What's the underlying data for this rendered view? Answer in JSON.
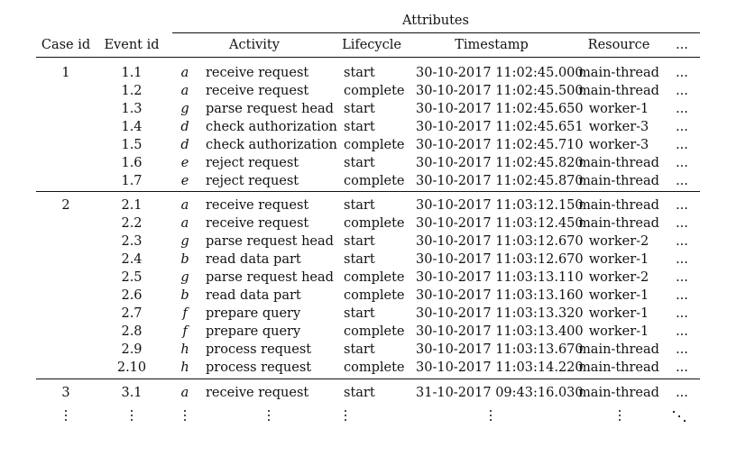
{
  "headers": {
    "attributes": "Attributes",
    "case_id": "Case id",
    "event_id": "Event id",
    "activity": "Activity",
    "lifecycle": "Lifecycle",
    "timestamp": "Timestamp",
    "resource": "Resource",
    "more": "..."
  },
  "cases": [
    {
      "case_id": "1",
      "events": [
        {
          "event_id": "1.1",
          "code": "a",
          "activity": "receive request",
          "lifecycle": "start",
          "timestamp": "30-10-2017 11:02:45.000",
          "resource": "main-thread",
          "more": "..."
        },
        {
          "event_id": "1.2",
          "code": "a",
          "activity": "receive request",
          "lifecycle": "complete",
          "timestamp": "30-10-2017 11:02:45.500",
          "resource": "main-thread",
          "more": "..."
        },
        {
          "event_id": "1.3",
          "code": "g",
          "activity": "parse request head",
          "lifecycle": "start",
          "timestamp": "30-10-2017 11:02:45.650",
          "resource": "worker-1",
          "more": "..."
        },
        {
          "event_id": "1.4",
          "code": "d",
          "activity": "check authorization",
          "lifecycle": "start",
          "timestamp": "30-10-2017 11:02:45.651",
          "resource": "worker-3",
          "more": "..."
        },
        {
          "event_id": "1.5",
          "code": "d",
          "activity": "check authorization",
          "lifecycle": "complete",
          "timestamp": "30-10-2017 11:02:45.710",
          "resource": "worker-3",
          "more": "..."
        },
        {
          "event_id": "1.6",
          "code": "e",
          "activity": "reject request",
          "lifecycle": "start",
          "timestamp": "30-10-2017 11:02:45.820",
          "resource": "main-thread",
          "more": "..."
        },
        {
          "event_id": "1.7",
          "code": "e",
          "activity": "reject request",
          "lifecycle": "complete",
          "timestamp": "30-10-2017 11:02:45.870",
          "resource": "main-thread",
          "more": "..."
        }
      ]
    },
    {
      "case_id": "2",
      "events": [
        {
          "event_id": "2.1",
          "code": "a",
          "activity": "receive request",
          "lifecycle": "start",
          "timestamp": "30-10-2017 11:03:12.150",
          "resource": "main-thread",
          "more": "..."
        },
        {
          "event_id": "2.2",
          "code": "a",
          "activity": "receive request",
          "lifecycle": "complete",
          "timestamp": "30-10-2017 11:03:12.450",
          "resource": "main-thread",
          "more": "..."
        },
        {
          "event_id": "2.3",
          "code": "g",
          "activity": "parse request head",
          "lifecycle": "start",
          "timestamp": "30-10-2017 11:03:12.670",
          "resource": "worker-2",
          "more": "..."
        },
        {
          "event_id": "2.4",
          "code": "b",
          "activity": "read data part",
          "lifecycle": "start",
          "timestamp": "30-10-2017 11:03:12.670",
          "resource": "worker-1",
          "more": "..."
        },
        {
          "event_id": "2.5",
          "code": "g",
          "activity": "parse request head",
          "lifecycle": "complete",
          "timestamp": "30-10-2017 11:03:13.110",
          "resource": "worker-2",
          "more": "..."
        },
        {
          "event_id": "2.6",
          "code": "b",
          "activity": "read data part",
          "lifecycle": "complete",
          "timestamp": "30-10-2017 11:03:13.160",
          "resource": "worker-1",
          "more": "..."
        },
        {
          "event_id": "2.7",
          "code": "f",
          "activity": "prepare query",
          "lifecycle": "start",
          "timestamp": "30-10-2017 11:03:13.320",
          "resource": "worker-1",
          "more": "..."
        },
        {
          "event_id": "2.8",
          "code": "f",
          "activity": "prepare query",
          "lifecycle": "complete",
          "timestamp": "30-10-2017 11:03:13.400",
          "resource": "worker-1",
          "more": "..."
        },
        {
          "event_id": "2.9",
          "code": "h",
          "activity": "process request",
          "lifecycle": "start",
          "timestamp": "30-10-2017 11:03:13.670",
          "resource": "main-thread",
          "more": "..."
        },
        {
          "event_id": "2.10",
          "code": "h",
          "activity": "process request",
          "lifecycle": "complete",
          "timestamp": "30-10-2017 11:03:14.220",
          "resource": "main-thread",
          "more": "..."
        }
      ]
    },
    {
      "case_id": "3",
      "events": [
        {
          "event_id": "3.1",
          "code": "a",
          "activity": "receive request",
          "lifecycle": "start",
          "timestamp": "31-10-2017 09:43:16.030",
          "resource": "main-thread",
          "more": "..."
        }
      ]
    }
  ]
}
